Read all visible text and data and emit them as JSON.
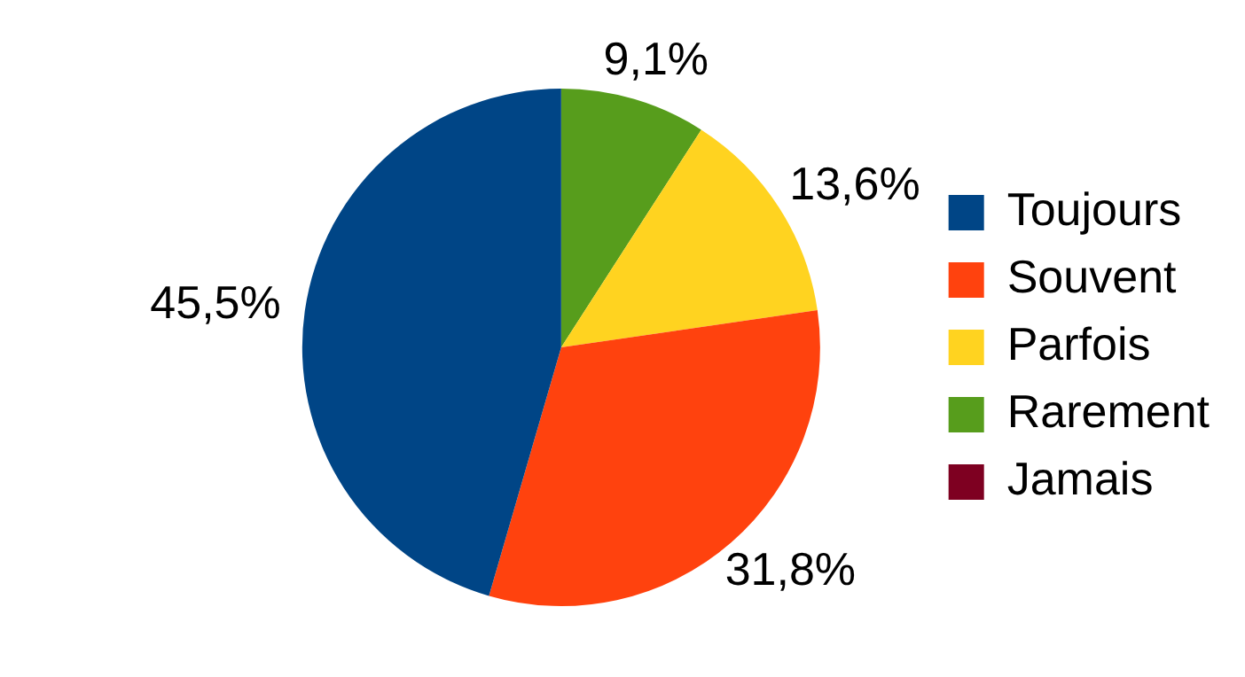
{
  "chart_data": {
    "type": "pie",
    "categories": [
      "Toujours",
      "Souvent",
      "Parfois",
      "Rarement",
      "Jamais"
    ],
    "values": [
      45.5,
      31.8,
      13.6,
      9.1,
      0
    ],
    "colors": [
      "#004586",
      "#ff420e",
      "#ffd320",
      "#579d1c",
      "#7e0021"
    ],
    "value_labels": [
      "45,5%",
      "31,8%",
      "13,6%",
      "9,1%",
      null
    ],
    "legend": "right"
  }
}
